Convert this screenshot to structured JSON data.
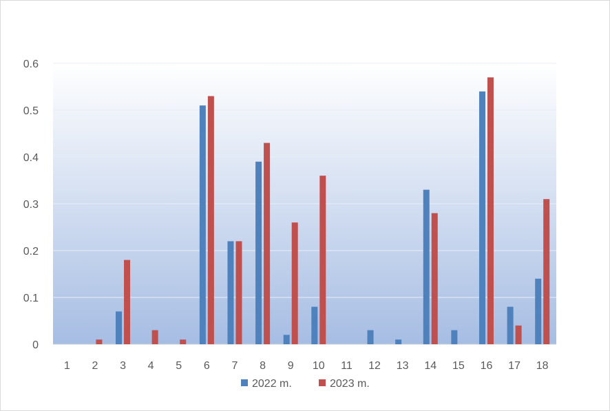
{
  "chart_data": {
    "type": "bar",
    "title": "",
    "xlabel": "",
    "ylabel": "",
    "ylim": [
      0,
      0.6
    ],
    "yticks": [
      "0",
      "0.1",
      "0.2",
      "0.3",
      "0.4",
      "0.5",
      "0.6"
    ],
    "grid": true,
    "legend_position": "bottom",
    "categories": [
      "1",
      "2",
      "3",
      "4",
      "5",
      "6",
      "7",
      "8",
      "9",
      "10",
      "11",
      "12",
      "13",
      "14",
      "15",
      "16",
      "17",
      "18"
    ],
    "series": [
      {
        "name": "2022 m.",
        "color": "#4f81bd",
        "values": [
          0,
          0,
          0.07,
          0,
          0,
          0.51,
          0.22,
          0.39,
          0.02,
          0.08,
          0,
          0.03,
          0.01,
          0.33,
          0.03,
          0.54,
          0.08,
          0.14
        ]
      },
      {
        "name": "2023 m.",
        "color": "#c0504d",
        "values": [
          0,
          0.01,
          0.18,
          0.03,
          0.01,
          0.53,
          0.22,
          0.43,
          0.26,
          0.36,
          0,
          0,
          0,
          0.28,
          0,
          0.57,
          0.04,
          0.31
        ]
      }
    ],
    "plot_gradient": [
      "#ffffff",
      "#a6bde3"
    ]
  }
}
